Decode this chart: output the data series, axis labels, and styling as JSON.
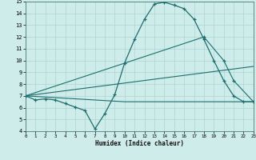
{
  "xlabel": "Humidex (Indice chaleur)",
  "xlim": [
    0,
    23
  ],
  "ylim": [
    4,
    15
  ],
  "yticks": [
    4,
    5,
    6,
    7,
    8,
    9,
    10,
    11,
    12,
    13,
    14,
    15
  ],
  "xticks": [
    0,
    1,
    2,
    3,
    4,
    5,
    6,
    7,
    8,
    9,
    10,
    11,
    12,
    13,
    14,
    15,
    16,
    17,
    18,
    19,
    20,
    21,
    22,
    23
  ],
  "background_color": "#ceecea",
  "line_color": "#1e6e6e",
  "grid_color": "#aed4d2",
  "line1_x": [
    0,
    1,
    2,
    3,
    4,
    5,
    6,
    7,
    8,
    9,
    10,
    11,
    12,
    13,
    14,
    15,
    16,
    17,
    18,
    19,
    20,
    21,
    22,
    23
  ],
  "line1_y": [
    7.0,
    6.65,
    6.75,
    6.65,
    6.35,
    6.05,
    5.75,
    4.2,
    5.5,
    7.1,
    9.8,
    11.8,
    13.5,
    14.8,
    14.95,
    14.7,
    14.4,
    13.5,
    11.8,
    10.0,
    8.3,
    7.0,
    6.5,
    6.5
  ],
  "line2_x": [
    0,
    18,
    20,
    21,
    23
  ],
  "line2_y": [
    7.0,
    12.0,
    10.0,
    8.3,
    6.5
  ],
  "line3_x": [
    0,
    23
  ],
  "line3_y": [
    7.0,
    9.5
  ],
  "line4_x": [
    0,
    10,
    23
  ],
  "line4_y": [
    7.0,
    6.5,
    6.5
  ]
}
